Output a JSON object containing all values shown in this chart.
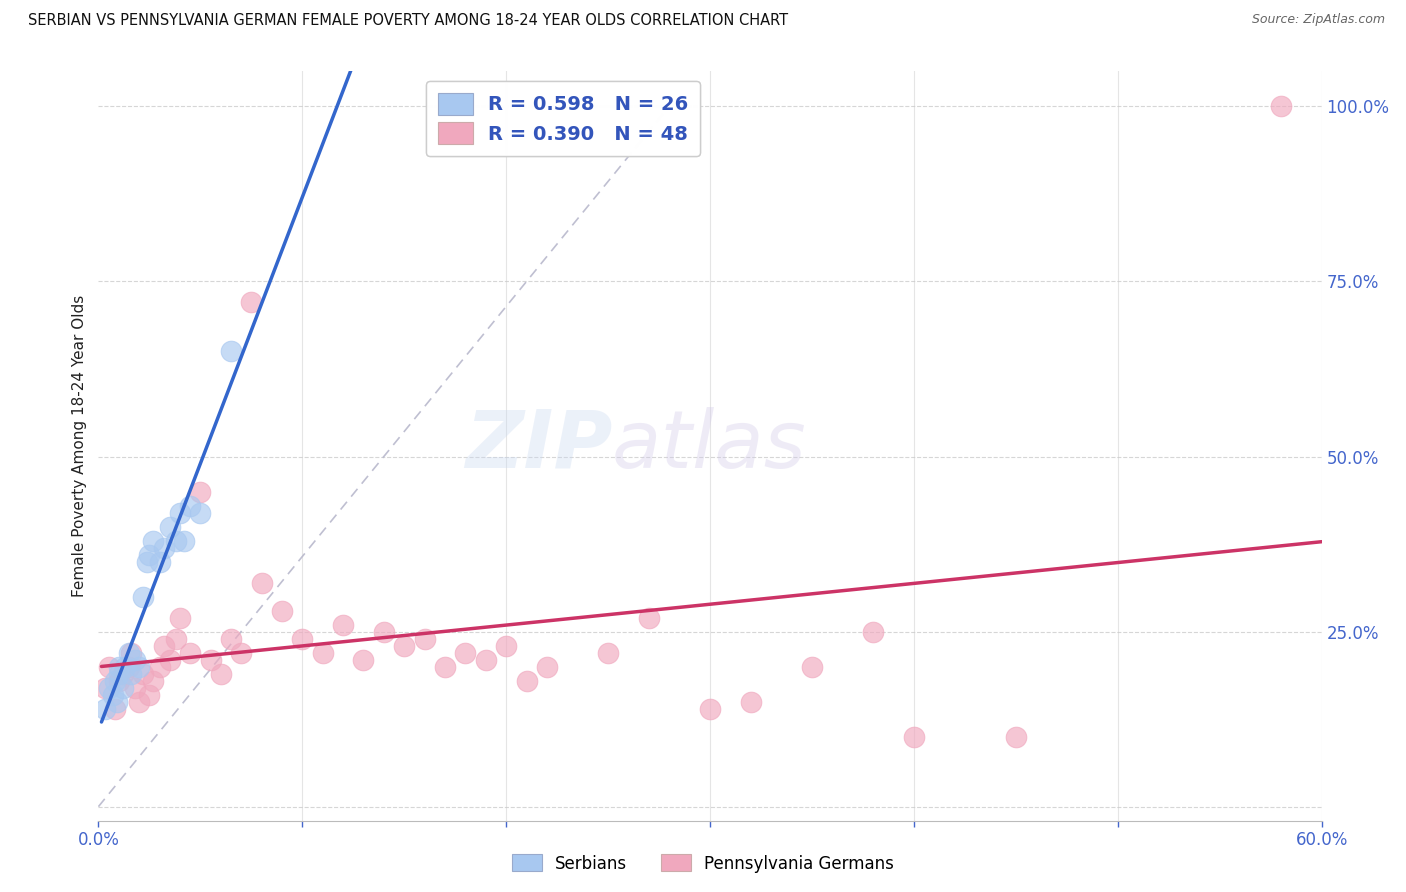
{
  "title": "SERBIAN VS PENNSYLVANIA GERMAN FEMALE POVERTY AMONG 18-24 YEAR OLDS CORRELATION CHART",
  "source": "Source: ZipAtlas.com",
  "ylabel": "Female Poverty Among 18-24 Year Olds",
  "xlim": [
    0.0,
    0.6
  ],
  "ylim": [
    -0.02,
    1.05
  ],
  "x_ticks": [
    0.0,
    0.1,
    0.2,
    0.3,
    0.4,
    0.5,
    0.6
  ],
  "x_tick_labels_show": [
    "0.0%",
    "",
    "",
    "",
    "",
    "",
    "60.0%"
  ],
  "y_ticks_right": [
    0.0,
    0.25,
    0.5,
    0.75,
    1.0
  ],
  "y_tick_labels_right": [
    "",
    "25.0%",
    "50.0%",
    "75.0%",
    "100.0%"
  ],
  "grid_color": "#cccccc",
  "background_color": "#ffffff",
  "watermark_zip": "ZIP",
  "watermark_atlas": "atlas",
  "serbian_color": "#a8c8f0",
  "pa_german_color": "#f0a8be",
  "serbian_line_color": "#3366cc",
  "pa_german_line_color": "#cc3366",
  "ref_line_color": "#b8b8cc",
  "serbian_points_x": [
    0.003,
    0.005,
    0.007,
    0.008,
    0.009,
    0.01,
    0.01,
    0.012,
    0.013,
    0.015,
    0.016,
    0.018,
    0.02,
    0.022,
    0.024,
    0.025,
    0.027,
    0.03,
    0.032,
    0.035,
    0.038,
    0.04,
    0.042,
    0.045,
    0.05,
    0.065
  ],
  "serbian_points_y": [
    0.14,
    0.17,
    0.16,
    0.18,
    0.15,
    0.19,
    0.2,
    0.17,
    0.2,
    0.22,
    0.19,
    0.21,
    0.2,
    0.3,
    0.35,
    0.36,
    0.38,
    0.35,
    0.37,
    0.4,
    0.38,
    0.42,
    0.38,
    0.43,
    0.42,
    0.65
  ],
  "pa_german_points_x": [
    0.003,
    0.005,
    0.008,
    0.01,
    0.012,
    0.015,
    0.016,
    0.018,
    0.02,
    0.022,
    0.025,
    0.027,
    0.03,
    0.032,
    0.035,
    0.038,
    0.04,
    0.045,
    0.05,
    0.055,
    0.06,
    0.065,
    0.07,
    0.075,
    0.08,
    0.09,
    0.1,
    0.11,
    0.12,
    0.13,
    0.14,
    0.15,
    0.16,
    0.17,
    0.18,
    0.19,
    0.2,
    0.21,
    0.22,
    0.25,
    0.27,
    0.3,
    0.32,
    0.35,
    0.38,
    0.4,
    0.45,
    0.58
  ],
  "pa_german_points_y": [
    0.17,
    0.2,
    0.14,
    0.18,
    0.19,
    0.2,
    0.22,
    0.17,
    0.15,
    0.19,
    0.16,
    0.18,
    0.2,
    0.23,
    0.21,
    0.24,
    0.27,
    0.22,
    0.45,
    0.21,
    0.19,
    0.24,
    0.22,
    0.72,
    0.32,
    0.28,
    0.24,
    0.22,
    0.26,
    0.21,
    0.25,
    0.23,
    0.24,
    0.2,
    0.22,
    0.21,
    0.23,
    0.18,
    0.2,
    0.22,
    0.27,
    0.14,
    0.15,
    0.2,
    0.25,
    0.1,
    0.1,
    1.0
  ],
  "legend_serbian_label": "R = 0.598   N = 26",
  "legend_pa_german_label": "R = 0.390   N = 48"
}
